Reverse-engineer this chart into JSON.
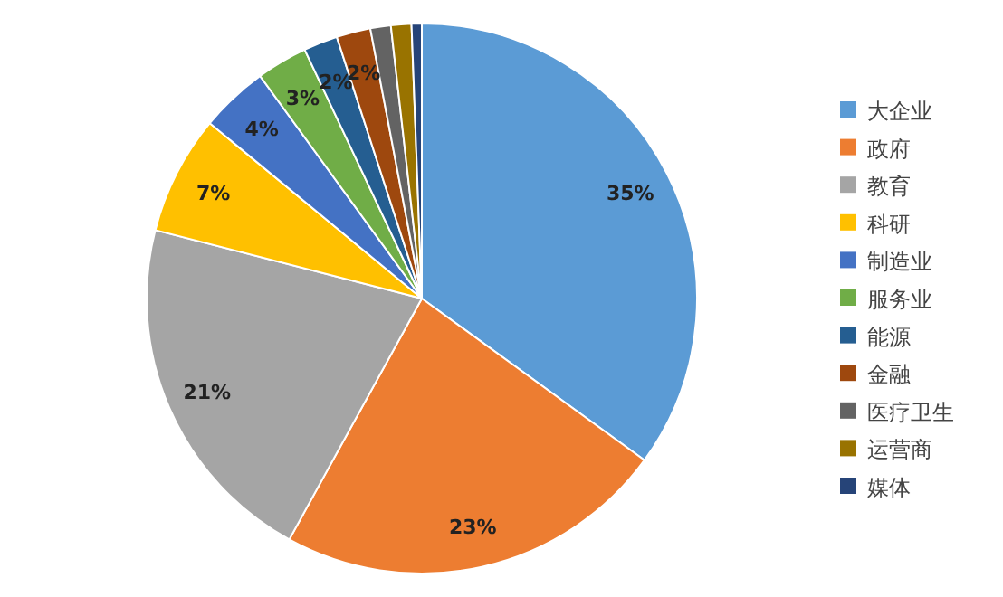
{
  "chart_data": {
    "type": "pie",
    "categories": [
      "大企业",
      "政府",
      "教育",
      "科研",
      "制造业",
      "服务业",
      "能源",
      "金融",
      "医疗卫生",
      "运营商",
      "媒体"
    ],
    "values": [
      35,
      23,
      21,
      7,
      4,
      3,
      2,
      2,
      1.2,
      1.2,
      0.6
    ],
    "value_labels": [
      "35%",
      "23%",
      "21%",
      "7%",
      "4%",
      "3%",
      "2%",
      "2%",
      null,
      null,
      null
    ],
    "colors": [
      "#5b9bd5",
      "#ed7d31",
      "#a5a5a5",
      "#ffc000",
      "#4472c4",
      "#70ad47",
      "#255e91",
      "#9e480e",
      "#636363",
      "#997300",
      "#264478"
    ],
    "legend": "right"
  }
}
